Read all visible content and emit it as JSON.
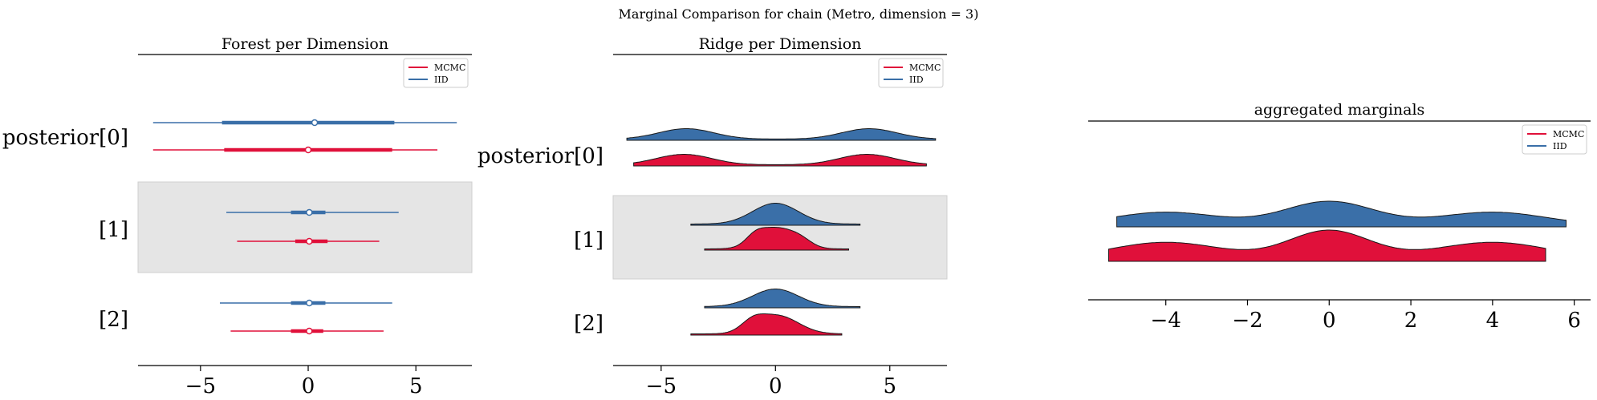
{
  "suptitle": "Marginal Comparison for chain (Metro, dimension = 3)",
  "colors": {
    "mcmc": "#e0103a",
    "iid": "#3a6fa8",
    "band": "#e5e5e5"
  },
  "legend": [
    "MCMC",
    "IID"
  ],
  "chart_data": [
    {
      "type": "forest",
      "title": "Forest per Dimension",
      "rows": [
        "posterior[0]",
        "[1]",
        "[2]"
      ],
      "shaded_rows": [
        1
      ],
      "xticks": [
        -5,
        0,
        5
      ],
      "xlim": [
        -7.9,
        7.6
      ],
      "legend_placement": "top-right",
      "series": [
        {
          "name": "IID",
          "stats": [
            {
              "mean": 0.3,
              "q25": -4.0,
              "q75": 4.0,
              "lo": -7.2,
              "hi": 6.9
            },
            {
              "mean": 0.05,
              "q25": -0.8,
              "q75": 0.8,
              "lo": -3.8,
              "hi": 4.2
            },
            {
              "mean": 0.05,
              "q25": -0.8,
              "q75": 0.8,
              "lo": -4.1,
              "hi": 3.9
            }
          ]
        },
        {
          "name": "MCMC",
          "stats": [
            {
              "mean": 0.0,
              "q25": -3.9,
              "q75": 3.9,
              "lo": -7.2,
              "hi": 6.0
            },
            {
              "mean": 0.05,
              "q25": -0.6,
              "q75": 0.9,
              "lo": -3.3,
              "hi": 3.3
            },
            {
              "mean": 0.05,
              "q25": -0.8,
              "q75": 0.7,
              "lo": -3.6,
              "hi": 3.5
            }
          ]
        }
      ]
    },
    {
      "type": "ridge",
      "title": "Ridge per Dimension",
      "rows": [
        "posterior[0]",
        "[1]",
        "[2]"
      ],
      "shaded_rows": [
        1
      ],
      "xticks": [
        -5,
        0,
        5
      ],
      "xlim": [
        -7.1,
        7.5
      ],
      "legend_placement": "top-right",
      "series": [
        {
          "name": "IID",
          "rows": [
            {
              "range": [
                -6.5,
                7.0
              ],
              "peaks": [
                [
                  -3.9,
                  1.0,
                  1.2
                ],
                [
                  4.1,
                  1.0,
                  1.2
                ]
              ]
            },
            {
              "range": [
                -3.7,
                3.7
              ],
              "peaks": [
                [
                  0.0,
                  1.0,
                  1.0
                ]
              ]
            },
            {
              "range": [
                -3.1,
                3.7
              ],
              "peaks": [
                [
                  0.0,
                  1.0,
                  1.0
                ]
              ]
            }
          ]
        },
        {
          "name": "MCMC",
          "rows": [
            {
              "range": [
                -6.2,
                6.6
              ],
              "peaks": [
                [
                  -4.0,
                  1.0,
                  1.2
                ],
                [
                  4.0,
                  1.0,
                  1.2
                ]
              ]
            },
            {
              "range": [
                -3.1,
                3.2
              ],
              "peaks": [
                [
                  0.0,
                  1.0,
                  0.8
                ],
                [
                  -0.9,
                  0.35,
                  0.4
                ],
                [
                  1.1,
                  0.3,
                  0.5
                ]
              ]
            },
            {
              "range": [
                -3.7,
                2.9
              ],
              "peaks": [
                [
                  0.1,
                  1.0,
                  0.9
                ],
                [
                  -1.0,
                  0.5,
                  0.5
                ]
              ]
            }
          ]
        }
      ]
    },
    {
      "type": "ridge",
      "title": "aggregated marginals",
      "xticks": [
        -4,
        -2,
        0,
        2,
        4,
        6
      ],
      "xlim": [
        -5.9,
        6.4
      ],
      "legend_placement": "top-right",
      "series": [
        {
          "name": "IID",
          "range": [
            -5.2,
            5.8
          ],
          "peaks": [
            [
              0.0,
              1.0,
              1.1
            ],
            [
              -4.0,
              0.55,
              1.3
            ],
            [
              4.0,
              0.55,
              1.3
            ]
          ]
        },
        {
          "name": "MCMC",
          "range": [
            -5.4,
            5.3
          ],
          "peaks": [
            [
              0.0,
              1.0,
              1.0
            ],
            [
              -4.0,
              0.6,
              1.4
            ],
            [
              4.0,
              0.6,
              1.4
            ]
          ]
        }
      ]
    }
  ]
}
